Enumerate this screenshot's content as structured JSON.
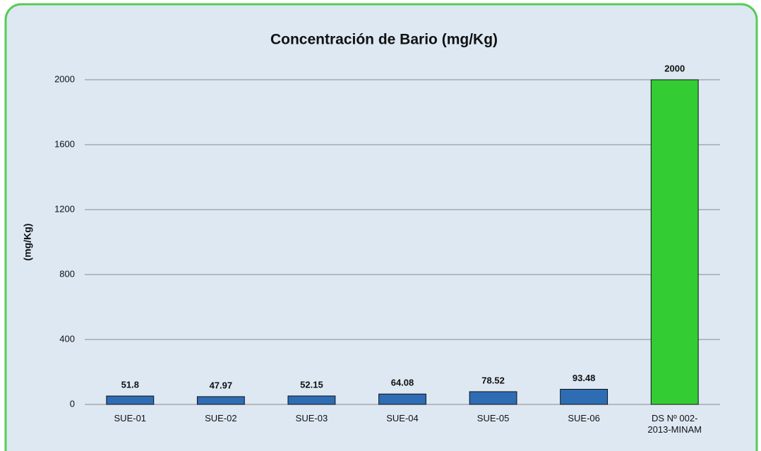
{
  "chart_data": {
    "type": "bar",
    "title": "Concentración de Bario (mg/Kg)",
    "y_label": "(mg/Kg)",
    "categories": [
      "SUE-01",
      "SUE-02",
      "SUE-03",
      "SUE-04",
      "SUE-05",
      "SUE-06",
      "DS Nº 002-2013-MINAM"
    ],
    "values": [
      51.8,
      47.97,
      52.15,
      64.08,
      78.52,
      93.48,
      2000
    ],
    "colors": [
      "#2e6db4",
      "#2e6db4",
      "#2e6db4",
      "#2e6db4",
      "#2e6db4",
      "#2e6db4",
      "#33cc33"
    ],
    "ylim": [
      0,
      2000
    ],
    "yticks": [
      0,
      400,
      800,
      1200,
      1600,
      2000
    ],
    "grid": true
  }
}
